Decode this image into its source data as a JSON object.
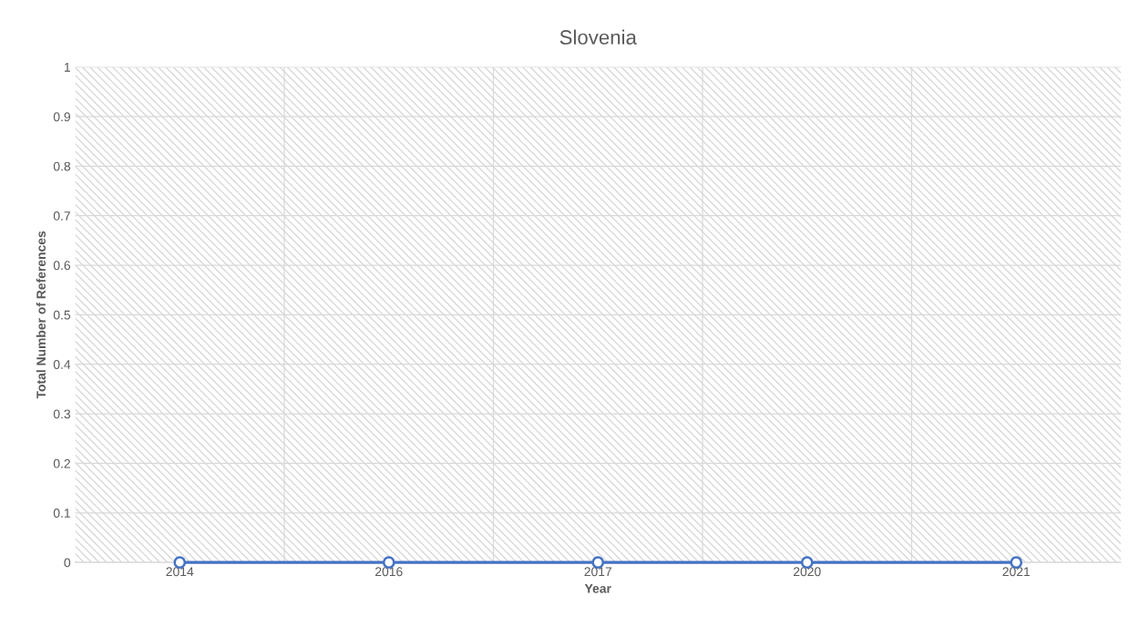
{
  "chart_data": {
    "type": "line",
    "title": "Slovenia",
    "xlabel": "Year",
    "ylabel": "Total Number of References",
    "categories": [
      "2014",
      "2016",
      "2017",
      "2020",
      "2021"
    ],
    "series": [
      {
        "color": "#4472c4",
        "values": [
          0,
          0,
          0,
          0,
          0
        ]
      }
    ],
    "ylim": [
      0,
      1
    ],
    "yticks": [
      0,
      0.1,
      0.2,
      0.3,
      0.4,
      0.5,
      0.6,
      0.7,
      0.8,
      0.9,
      1
    ],
    "grid": true,
    "marker": "circle",
    "line_style": "solid"
  }
}
